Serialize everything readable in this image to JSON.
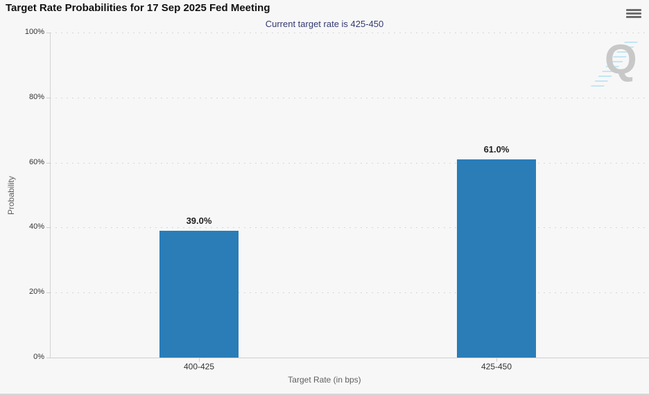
{
  "header": {
    "title": "Target Rate Probabilities for 17 Sep 2025 Fed Meeting",
    "menu_icon": "hamburger-icon"
  },
  "chart_data": {
    "type": "bar",
    "title": "Target Rate Probabilities for 17 Sep 2025 Fed Meeting",
    "subtitle": "Current target rate is 425-450",
    "categories": [
      "400-425",
      "425-450"
    ],
    "values": [
      39.0,
      61.0
    ],
    "data_labels": [
      "39.0%",
      "61.0%"
    ],
    "xlabel": "Target Rate (in bps)",
    "ylabel": "Probability",
    "ylim": [
      0,
      100
    ],
    "yticks": [
      "0%",
      "20%",
      "40%",
      "60%",
      "80%",
      "100%"
    ],
    "grid": "horizontal dotted",
    "legend_position": "none",
    "bar_color": "#2a7db7"
  },
  "watermark": {
    "letter": "Q"
  },
  "colors": {
    "background": "#f7f7f7",
    "bar": "#2a7db7",
    "title": "#111111",
    "subtitle": "#333a70",
    "axis_label": "#333333",
    "axis_title": "#5f5f5f",
    "gridline": "#d6d6d6",
    "axis_line": "#cfcfcf",
    "data_label": "#1f1f1f",
    "watermark_letter": "#c8c8c8",
    "watermark_stripes": "#c3e5f4",
    "menu_icon": "#6e6e6e"
  }
}
